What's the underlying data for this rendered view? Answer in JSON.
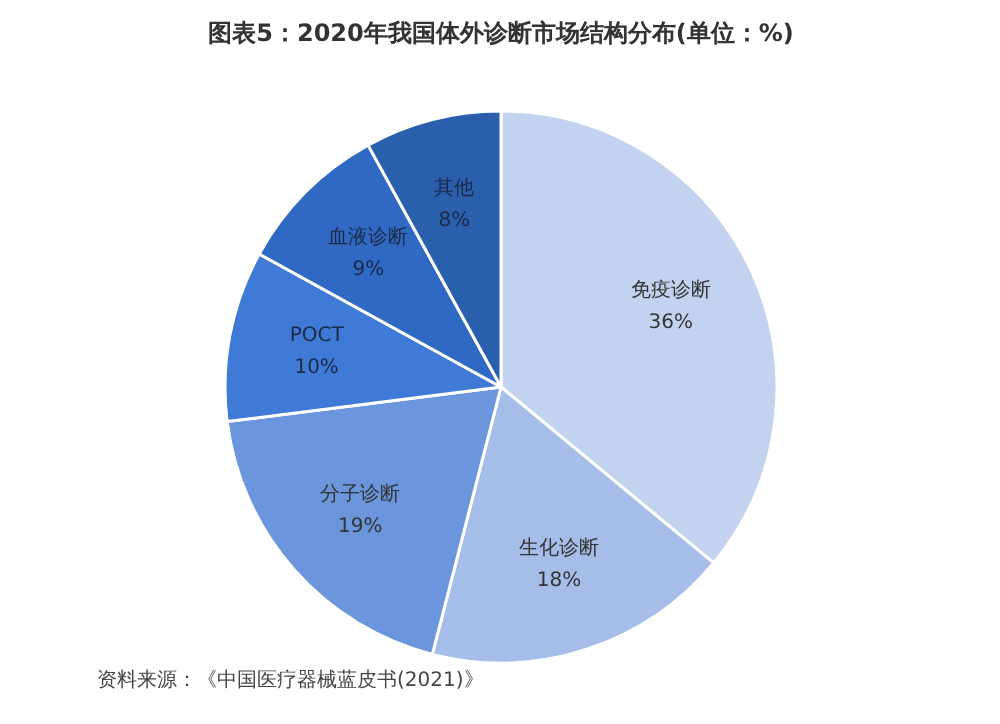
{
  "chart_data": {
    "type": "pie",
    "title": "图表5：2020年我国体外诊断市场结构分布(单位：%)",
    "categories": [
      "免疫诊断",
      "生化诊断",
      "分子诊断",
      "POCT",
      "血液诊断",
      "其他"
    ],
    "values": [
      36,
      18,
      19,
      10,
      9,
      8
    ],
    "colors": [
      "#c3d3ef",
      "#a6bde9",
      "#6b95dc",
      "#3f7bd6",
      "#3069c4",
      "#2a5fae"
    ],
    "value_labels": [
      "36%",
      "18%",
      "19%",
      "10%",
      "9%",
      "8%"
    ],
    "annotations": [
      "资料来源：《中国医疗器械蓝皮书(2021)》"
    ]
  }
}
